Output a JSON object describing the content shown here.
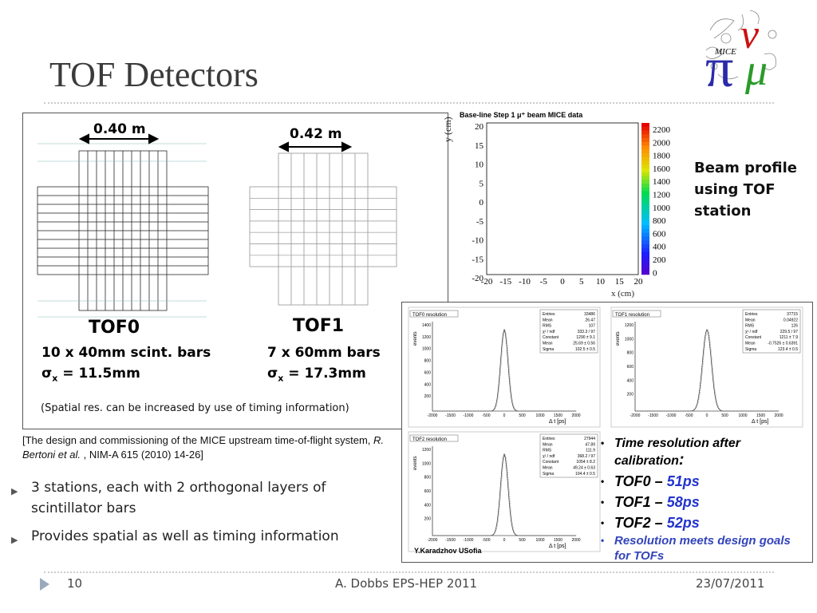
{
  "slide_title": "TOF Detectors",
  "tof0": {
    "width": "0.40 m",
    "name": "TOF0",
    "line1": "10 x 40mm scint. bars",
    "sigma_value": "= 11.5mm"
  },
  "tof1": {
    "width": "0.42 m",
    "name": "TOF1",
    "line1": "7 x 60mm bars",
    "sigma_value": "= 17.3mm"
  },
  "sigma_symbol": "σ",
  "sigma_sub": "x",
  "spatial_note": "(Spatial res. can be increased by use of timing information)",
  "beam_plot": {
    "title": "Base-line Step 1 μ⁺ beam MICE data",
    "ylabel": "y (cm)",
    "xlabel": "x (cm)",
    "xticks": [
      "-20",
      "-15",
      "-10",
      "-5",
      "0",
      "5",
      "10",
      "15",
      "20"
    ],
    "yticks": [
      "20",
      "15",
      "10",
      "5",
      "0",
      "-5",
      "-10",
      "-15",
      "-20"
    ],
    "zticks": [
      "2200",
      "2000",
      "1800",
      "1600",
      "1400",
      "1200",
      "1000",
      "800",
      "600",
      "400",
      "200",
      "0"
    ]
  },
  "beam_caption": "Beam profile using TOF station",
  "citation": {
    "part1": "[The design and commissioning of the MICE upstream time-of-flight system, ",
    "authors": "R. Bertoni et al.",
    "part2": " , NIM-A 615 (2010) 14-26]"
  },
  "bullets": [
    "3 stations, each with 2 orthogonal layers of scintillator bars",
    "Provides spatial as well as timing information"
  ],
  "hists": [
    {
      "title": "TOF0 resolution",
      "stats": [
        [
          "Entries",
          "33486"
        ],
        [
          "Mean",
          "26.47"
        ],
        [
          "RMS",
          "107"
        ],
        [
          "χ² / ndf",
          "333.3 / 97"
        ],
        [
          "Constant",
          "1290 ± 9.1"
        ],
        [
          "Mean",
          "25.69 ± 0.56"
        ],
        [
          "Sigma",
          "102.5 ± 0.5"
        ]
      ],
      "yticks": [
        "1400",
        "1200",
        "1000",
        "800",
        "600",
        "400",
        "200"
      ],
      "xticks": [
        "-2000",
        "-1500",
        "-1000",
        "-500",
        "0",
        "500",
        "1000",
        "1500",
        "2000"
      ]
    },
    {
      "title": "TOF1 resolution",
      "stats": [
        [
          "Entries",
          "37715"
        ],
        [
          "Mean",
          "0.04922"
        ],
        [
          "RMS",
          "126"
        ],
        [
          "χ² / ndf",
          "229.5 / 97"
        ],
        [
          "Constant",
          "1211 ± 7.9"
        ],
        [
          "Mean",
          "-0.7526 ± 0.6391"
        ],
        [
          "Sigma",
          "123.4 ± 0.5"
        ]
      ],
      "yticks": [
        "1200",
        "1000",
        "800",
        "600",
        "400",
        "200"
      ],
      "xticks": [
        "-2000",
        "-1500",
        "-1000",
        "-500",
        "0",
        "500",
        "1000",
        "1500",
        "2000"
      ]
    },
    {
      "title": "TOF2 resolution",
      "stats": [
        [
          "Entries",
          "27944"
        ],
        [
          "Mean",
          "47.89"
        ],
        [
          "RMS",
          "111.9"
        ],
        [
          "χ² / ndf",
          "368.2 / 97"
        ],
        [
          "Constant",
          "1054 ± 8.2"
        ],
        [
          "Mean",
          "49.24 ± 0.63"
        ],
        [
          "Sigma",
          "104.4 ± 0.5"
        ]
      ],
      "yticks": [
        "1200",
        "1000",
        "800",
        "600",
        "400",
        "200"
      ],
      "xticks": [
        "-2000",
        "-1500",
        "-1000",
        "-500",
        "0",
        "500",
        "1000",
        "1500",
        "2000"
      ]
    }
  ],
  "hist_ylabel": "events",
  "hist_xlabel": "Δ t  [ps]",
  "hist_credit": "Y.Karadzhov USofia",
  "results": {
    "heading": "Time resolution after calibration",
    "heading_colon": ":",
    "rows": [
      {
        "name": "TOF0 –",
        "value": "51ps"
      },
      {
        "name": "TOF1 –",
        "value": "58ps"
      },
      {
        "name": "TOF2 –",
        "value": "52ps"
      }
    ],
    "goal": "Resolution meets design goals for TOFs",
    "bullet_char": "•"
  },
  "footer": {
    "page": "10",
    "center": "A. Dobbs EPS-HEP 2011",
    "date": "23/07/2011"
  },
  "logo_text": "MICE",
  "colors": {
    "result_blue": "#2233cc",
    "goal_blue": "#3344bb",
    "logo_blue": "#2a2aaa",
    "logo_red": "#cc1111",
    "logo_green": "#2a9a2a"
  }
}
